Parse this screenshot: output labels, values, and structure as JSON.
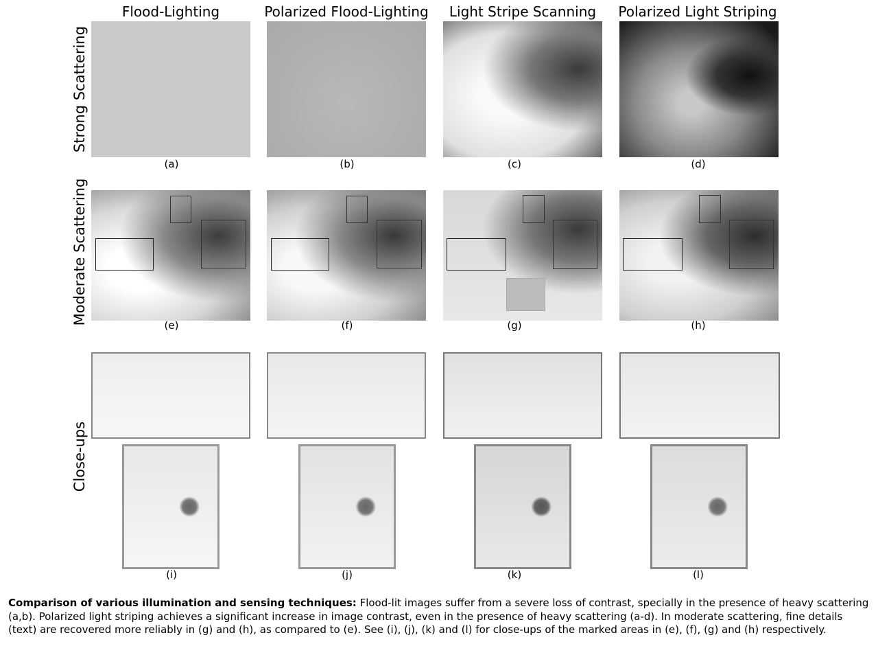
{
  "columns": [
    "Flood-Lighting",
    "Polarized Flood-Lighting",
    "Light Stripe Scanning",
    "Polarized Light Striping"
  ],
  "rows": [
    "Strong Scattering",
    "Moderate Scattering",
    "Close-ups"
  ],
  "labels": [
    "(a)",
    "(b)",
    "(c)",
    "(d)",
    "(e)",
    "(f)",
    "(g)",
    "(h)",
    "(i)",
    "(j)",
    "(k)",
    "(l)"
  ],
  "caption": {
    "title": "Comparison of various illumination and sensing techniques:",
    "text": "Flood-lit images suffer from a severe loss of contrast, specially in the presence of heavy scattering (a,b). Polarized light striping achieves a significant increase in image contrast, even in the presence of heavy scattering (a-d). In moderate scattering, fine details (text) are recovered more reliably in (g) and (h), as compared to (e). See (i), (j), (k) and (l) for close-ups of the marked areas in (e), (f), (g) and (h) respectively."
  }
}
